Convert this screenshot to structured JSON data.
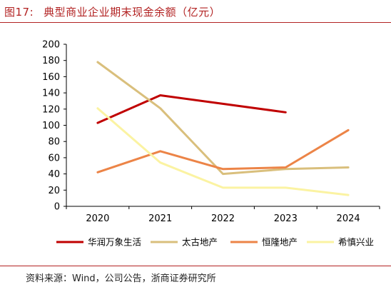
{
  "figure": {
    "number": "图17:",
    "title": "典型商业企业期末现金余额（亿元）"
  },
  "source": "资料来源：Wind，公司公告，浙商证券研究所",
  "colors": {
    "title": "#b22222",
    "rule": "#b22222"
  },
  "chart_data": {
    "type": "line",
    "title": "典型商业企业期末现金余额（亿元）",
    "xlabel": "",
    "ylabel": "",
    "x": [
      "2020",
      "2021",
      "2022",
      "2023",
      "2024"
    ],
    "ylim": [
      0,
      200
    ],
    "yticks": [
      0,
      20,
      40,
      60,
      80,
      100,
      120,
      140,
      160,
      180,
      200
    ],
    "grid": false,
    "legend_position": "bottom",
    "series": [
      {
        "name": "华润万象生活",
        "color": "#c00000",
        "values": [
          103,
          137,
          null,
          116,
          null
        ]
      },
      {
        "name": "太古地产",
        "color": "#d9bf7c",
        "values": [
          178,
          121,
          40,
          46,
          48
        ]
      },
      {
        "name": "恒隆地产",
        "color": "#ec8447",
        "values": [
          42,
          68,
          46,
          48,
          94
        ]
      },
      {
        "name": "希慎兴业",
        "color": "#fbf3a2",
        "values": [
          121,
          54,
          23,
          23,
          14
        ]
      }
    ]
  }
}
